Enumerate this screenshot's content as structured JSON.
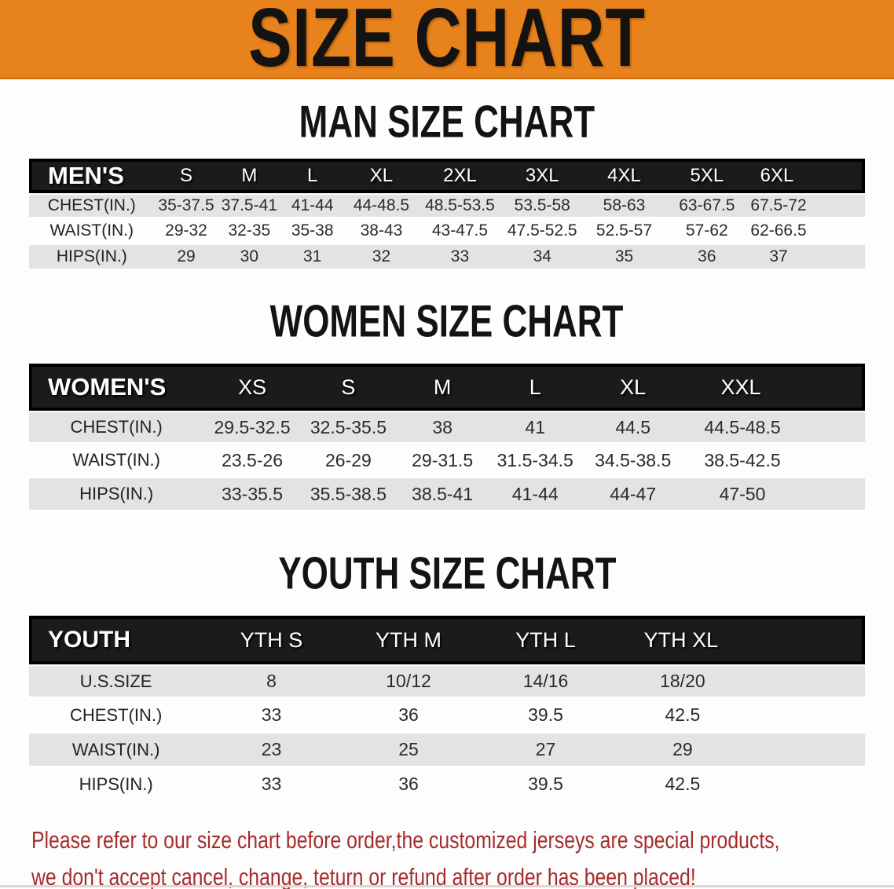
{
  "banner": {
    "title": "SIZE CHART"
  },
  "colors": {
    "banner_bg": "#E8821C",
    "header_bar": "#1B1B1B",
    "row_shade": "#E3E3E3",
    "disclaimer_red": "#A62C2C"
  },
  "sections": [
    {
      "heading": "MAN SIZE CHART",
      "table": {
        "header_label": "MEN'S",
        "sizes": [
          "S",
          "M",
          "L",
          "XL",
          "2XL",
          "3XL",
          "4XL",
          "5XL",
          "6XL"
        ],
        "rows": [
          {
            "label": "CHEST(IN.)",
            "values": [
              "35-37.5",
              "37.5-41",
              "41-44",
              "44-48.5",
              "48.5-53.5",
              "53.5-58",
              "58-63",
              "63-67.5",
              "67.5-72"
            ]
          },
          {
            "label": "WAIST(IN.)",
            "values": [
              "29-32",
              "32-35",
              "35-38",
              "38-43",
              "43-47.5",
              "47.5-52.5",
              "52.5-57",
              "57-62",
              "62-66.5"
            ]
          },
          {
            "label": "HIPS(IN.)",
            "values": [
              "29",
              "30",
              "31",
              "32",
              "33",
              "34",
              "35",
              "36",
              "37"
            ]
          }
        ]
      }
    },
    {
      "heading": "WOMEN SIZE CHART",
      "table": {
        "header_label": "WOMEN'S",
        "sizes": [
          "XS",
          "S",
          "M",
          "L",
          "XL",
          "XXL"
        ],
        "rows": [
          {
            "label": "CHEST(IN.)",
            "values": [
              "29.5-32.5",
              "32.5-35.5",
              "38",
              "41",
              "44.5",
              "44.5-48.5"
            ]
          },
          {
            "label": "WAIST(IN.)",
            "values": [
              "23.5-26",
              "26-29",
              "29-31.5",
              "31.5-34.5",
              "34.5-38.5",
              "38.5-42.5"
            ]
          },
          {
            "label": "HIPS(IN.)",
            "values": [
              "33-35.5",
              "35.5-38.5",
              "38.5-41",
              "41-44",
              "44-47",
              "47-50"
            ]
          }
        ]
      }
    },
    {
      "heading": "YOUTH SIZE CHART",
      "table": {
        "header_label": "YOUTH",
        "sizes": [
          "YTH S",
          "YTH M",
          "YTH L",
          "YTH XL"
        ],
        "rows": [
          {
            "label": "U.S.SIZE",
            "values": [
              "8",
              "10/12",
              "14/16",
              "18/20"
            ]
          },
          {
            "label": "CHEST(IN.)",
            "values": [
              "33",
              "36",
              "39.5",
              "42.5"
            ]
          },
          {
            "label": "WAIST(IN.)",
            "values": [
              "23",
              "25",
              "27",
              "29"
            ]
          },
          {
            "label": "HIPS(IN.)",
            "values": [
              "33",
              "36",
              "39.5",
              "42.5"
            ]
          }
        ]
      }
    }
  ],
  "disclaimer": {
    "line1": "Please refer to our size chart before order,the customized jerseys are special products,",
    "line2": "we don't accept cancel, change, teturn or refund after order has been placed!"
  }
}
